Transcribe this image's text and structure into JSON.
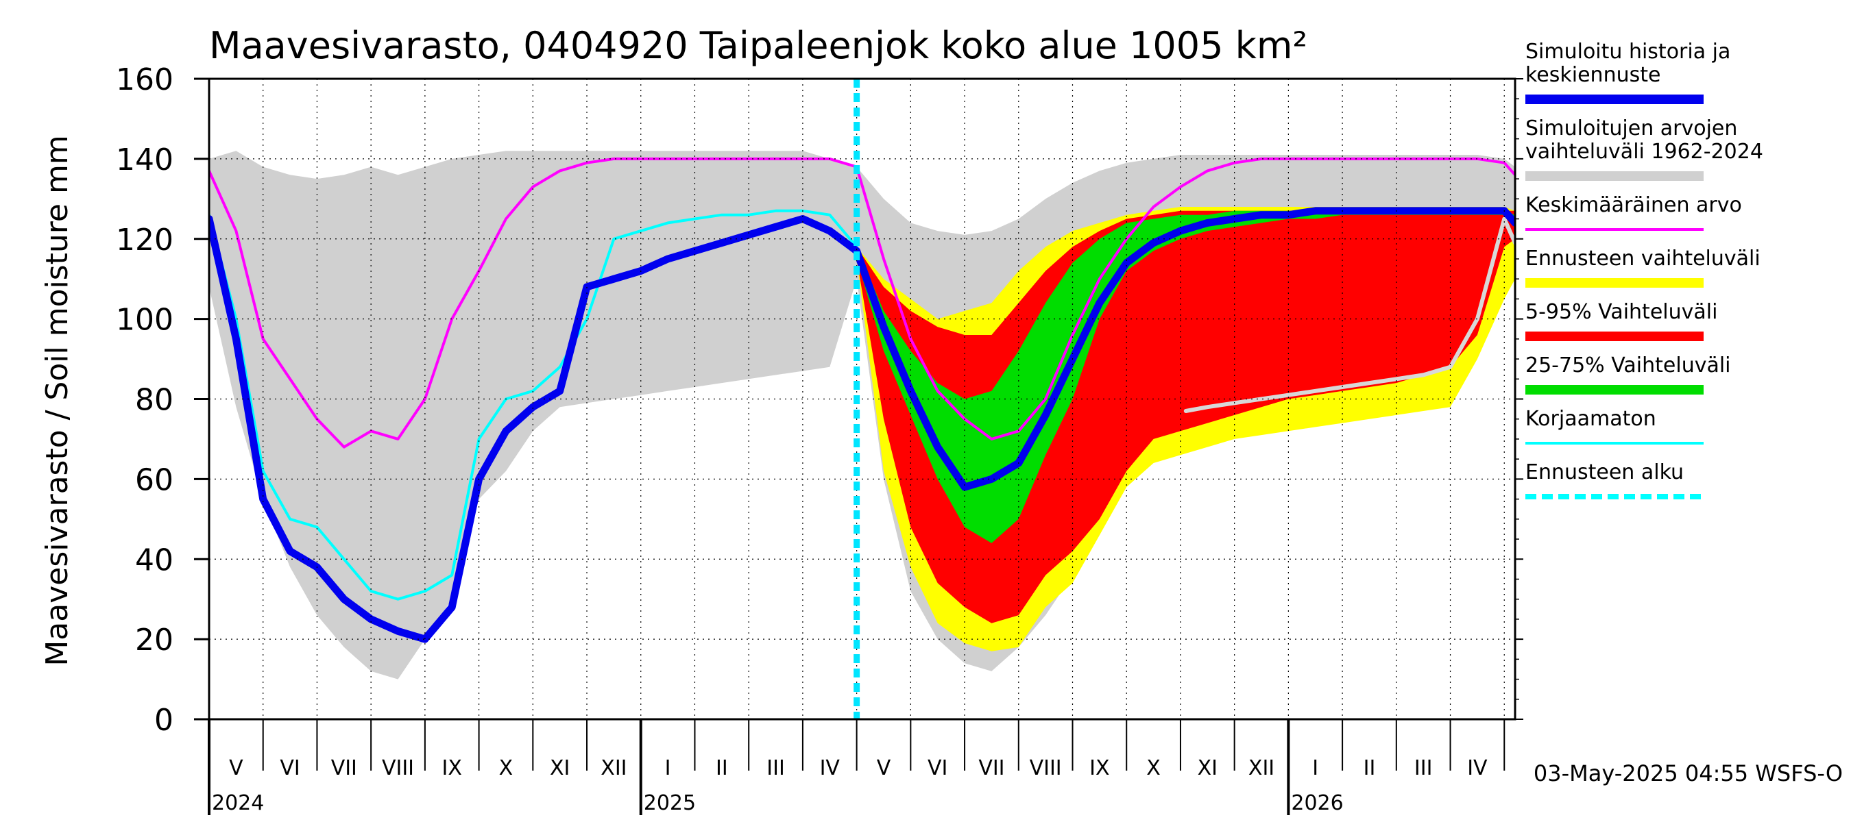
{
  "chart_data": {
    "type": "area",
    "title": "Maavesivarasto, 0404920 Taipaleenjok koko alue 1005 km²",
    "ylabel": "Maavesivarasto / Soil moisture   mm",
    "xlabel": "",
    "ylim": [
      0,
      160
    ],
    "yticks": [
      0,
      20,
      40,
      60,
      80,
      100,
      120,
      140,
      160
    ],
    "x_range_months": [
      0,
      24.2
    ],
    "forecast_start_month": 12.0,
    "months": [
      "V",
      "VI",
      "VII",
      "VIII",
      "IX",
      "X",
      "XI",
      "XII",
      "I",
      "II",
      "III",
      "IV",
      "V",
      "VI",
      "VII",
      "VIII",
      "IX",
      "X",
      "XI",
      "XII",
      "I",
      "II",
      "III",
      "IV"
    ],
    "years": [
      {
        "label": "2024",
        "month_index": 0
      },
      {
        "label": "2025",
        "month_index": 8
      },
      {
        "label": "2026",
        "month_index": 20
      }
    ],
    "timestamp": "03-May-2025 04:55 WSFS-O",
    "series": [
      {
        "name": "Simuloitujen arvojen vaihteluväli 1962-2024",
        "color": "#d0d0d0",
        "kind": "band",
        "x": [
          0,
          0.5,
          1,
          1.5,
          2,
          2.5,
          3,
          3.5,
          4,
          4.5,
          5,
          5.5,
          6,
          6.5,
          7,
          7.5,
          8,
          8.5,
          9,
          9.5,
          10,
          10.5,
          11,
          11.5,
          12,
          12.5,
          13,
          13.5,
          14,
          14.5,
          15,
          15.5,
          16,
          16.5,
          17,
          17.5,
          18,
          18.5,
          19,
          19.5,
          20,
          20.5,
          21,
          21.5,
          22,
          22.5,
          23,
          23.5,
          24,
          24.2
        ],
        "low": [
          108,
          78,
          55,
          38,
          26,
          18,
          12,
          10,
          20,
          30,
          55,
          62,
          72,
          78,
          79,
          80,
          81,
          82,
          83,
          84,
          85,
          86,
          87,
          88,
          110,
          60,
          32,
          20,
          14,
          12,
          18,
          26,
          36,
          50,
          62,
          70,
          72,
          74,
          76,
          77,
          78,
          79,
          80,
          81,
          82,
          84,
          90,
          100,
          120,
          112
        ],
        "high": [
          140,
          142,
          138,
          136,
          135,
          136,
          138,
          136,
          138,
          140,
          141,
          142,
          142,
          142,
          142,
          142,
          142,
          142,
          142,
          142,
          142,
          142,
          142,
          140,
          138,
          130,
          124,
          122,
          121,
          122,
          125,
          130,
          134,
          137,
          139,
          140,
          141,
          141,
          141,
          141,
          141,
          141,
          141,
          141,
          141,
          141,
          141,
          141,
          140,
          138
        ]
      },
      {
        "name": "Ennusteen vaihteluväli",
        "color": "#ffff00",
        "kind": "band",
        "x": [
          12,
          12.5,
          13,
          13.5,
          14,
          14.5,
          15,
          15.5,
          16,
          16.5,
          17,
          17.5,
          18,
          18.5,
          19,
          19.5,
          20,
          20.5,
          21,
          21.5,
          22,
          22.5,
          23,
          23.5,
          24,
          24.2
        ],
        "low": [
          115,
          62,
          38,
          24,
          19,
          17,
          18,
          28,
          34,
          46,
          58,
          64,
          66,
          68,
          70,
          71,
          72,
          73,
          74,
          75,
          76,
          77,
          78,
          90,
          105,
          110
        ],
        "high": [
          118,
          110,
          105,
          100,
          102,
          104,
          112,
          118,
          122,
          124,
          126,
          127,
          128,
          128,
          128,
          128,
          128,
          128,
          128,
          128,
          128,
          128,
          128,
          128,
          128,
          127
        ]
      },
      {
        "name": "5-95% Vaihteluväli",
        "color": "#ff0000",
        "kind": "band",
        "x": [
          12,
          12.5,
          13,
          13.5,
          14,
          14.5,
          15,
          15.5,
          16,
          16.5,
          17,
          17.5,
          18,
          18.5,
          19,
          19.5,
          20,
          20.5,
          21,
          21.5,
          22,
          22.5,
          23,
          23.5,
          24,
          24.2
        ],
        "low": [
          115,
          75,
          48,
          34,
          28,
          24,
          26,
          36,
          42,
          50,
          62,
          70,
          72,
          74,
          76,
          78,
          80,
          81,
          82,
          83,
          84,
          86,
          88,
          96,
          118,
          120
        ],
        "high": [
          118,
          108,
          102,
          98,
          96,
          96,
          104,
          112,
          118,
          122,
          125,
          126,
          127,
          127,
          127,
          127,
          127,
          127,
          127,
          127,
          127,
          127,
          127,
          127,
          127,
          127
        ]
      },
      {
        "name": "25-75% Vaihteluväli",
        "color": "#00dd00",
        "kind": "band",
        "x": [
          12,
          12.5,
          13,
          13.5,
          14,
          14.5,
          15,
          15.5,
          16,
          16.5,
          17,
          17.5,
          18,
          18.5,
          19,
          19.5,
          20,
          20.5,
          21,
          21.5,
          22,
          22.5,
          23,
          23.5,
          24,
          24.2
        ],
        "low": [
          115,
          92,
          76,
          60,
          48,
          44,
          50,
          66,
          80,
          100,
          112,
          117,
          120,
          122,
          123,
          124,
          125,
          125,
          126,
          126,
          126,
          126,
          126,
          126,
          126,
          125
        ],
        "high": [
          118,
          102,
          92,
          84,
          80,
          82,
          92,
          104,
          114,
          120,
          124,
          125,
          126,
          126,
          127,
          127,
          127,
          127,
          127,
          127,
          127,
          127,
          127,
          127,
          127,
          126
        ]
      },
      {
        "name": "Keskimääräinen arvo",
        "color": "#ff00ff",
        "kind": "line",
        "x": [
          0,
          0.5,
          1,
          1.5,
          2,
          2.5,
          3,
          3.5,
          4,
          4.5,
          5,
          5.5,
          6,
          6.5,
          7,
          7.5,
          8,
          8.5,
          9,
          9.5,
          10,
          10.5,
          11,
          11.5,
          12,
          12.5,
          13,
          13.5,
          14,
          14.5,
          15,
          15.5,
          16,
          16.5,
          17,
          17.5,
          18,
          18.5,
          19,
          19.5,
          20,
          20.5,
          21,
          21.5,
          22,
          22.5,
          23,
          23.5,
          24,
          24.2
        ],
        "y": [
          137,
          122,
          95,
          85,
          75,
          68,
          72,
          70,
          80,
          100,
          112,
          125,
          133,
          137,
          139,
          140,
          140,
          140,
          140,
          140,
          140,
          140,
          140,
          140,
          138,
          115,
          95,
          82,
          75,
          70,
          72,
          80,
          96,
          110,
          120,
          128,
          133,
          137,
          139,
          140,
          140,
          140,
          140,
          140,
          140,
          140,
          140,
          140,
          139,
          136
        ]
      },
      {
        "name": "Korjaamaton",
        "color": "#00ffff",
        "kind": "line",
        "x": [
          0,
          0.5,
          1,
          1.5,
          2,
          2.5,
          3,
          3.5,
          4,
          4.5,
          5,
          5.5,
          6,
          6.5,
          7,
          7.5,
          8,
          8.5,
          9,
          9.5,
          10,
          10.5,
          11,
          11.5,
          12
        ],
        "y": [
          126,
          100,
          62,
          50,
          48,
          40,
          32,
          30,
          32,
          36,
          70,
          80,
          82,
          88,
          100,
          120,
          122,
          124,
          125,
          126,
          126,
          127,
          127,
          126,
          118
        ]
      },
      {
        "name": "Korjaamaton (ennuste)",
        "color": "#d8d8d8",
        "kind": "line",
        "x": [
          18.1,
          18.5,
          19,
          19.5,
          20,
          20.5,
          21,
          21.5,
          22,
          22.5,
          23,
          23.5,
          24,
          24.2
        ],
        "y": [
          77,
          78,
          79,
          80,
          81,
          82,
          83,
          84,
          85,
          86,
          88,
          100,
          125,
          119
        ]
      },
      {
        "name": "Simuloitu historia ja keskiennuste",
        "color": "#0000ee",
        "kind": "line",
        "x": [
          0,
          0.5,
          1,
          1.5,
          2,
          2.5,
          3,
          3.5,
          4,
          4.5,
          5,
          5.5,
          6,
          6.5,
          7,
          7.5,
          8,
          8.5,
          9,
          9.5,
          10,
          10.5,
          11,
          11.5,
          12,
          12.5,
          13,
          13.5,
          14,
          14.5,
          15,
          15.5,
          16,
          16.5,
          17,
          17.5,
          18,
          18.5,
          19,
          19.5,
          20,
          20.5,
          21,
          21.5,
          22,
          22.5,
          23,
          23.5,
          24,
          24.2
        ],
        "y": [
          125,
          95,
          55,
          42,
          38,
          30,
          25,
          22,
          20,
          28,
          60,
          72,
          78,
          82,
          108,
          110,
          112,
          115,
          117,
          119,
          121,
          123,
          125,
          122,
          117,
          98,
          82,
          68,
          58,
          60,
          64,
          76,
          90,
          104,
          114,
          119,
          122,
          124,
          125,
          126,
          126,
          127,
          127,
          127,
          127,
          127,
          127,
          127,
          127,
          124
        ]
      }
    ],
    "legend": [
      {
        "label": "Simuloitu historia ja\nkeskiennuste",
        "color": "#0000ee",
        "style": "thick"
      },
      {
        "label": "Simuloitujen arvojen\nvaihteluväli 1962-2024",
        "color": "#d0d0d0",
        "style": "thick"
      },
      {
        "label": "Keskimääräinen arvo",
        "color": "#ff00ff",
        "style": "thin"
      },
      {
        "label": "Ennusteen vaihteluväli",
        "color": "#ffff00",
        "style": "thick"
      },
      {
        "label": "5-95% Vaihteluväli",
        "color": "#ff0000",
        "style": "thick"
      },
      {
        "label": "25-75% Vaihteluväli",
        "color": "#00dd00",
        "style": "thick"
      },
      {
        "label": "Korjaamaton",
        "color": "#00ffff",
        "style": "thin"
      },
      {
        "label": "Ennusteen alku",
        "color": "#00ffff",
        "style": "dashed"
      }
    ]
  }
}
